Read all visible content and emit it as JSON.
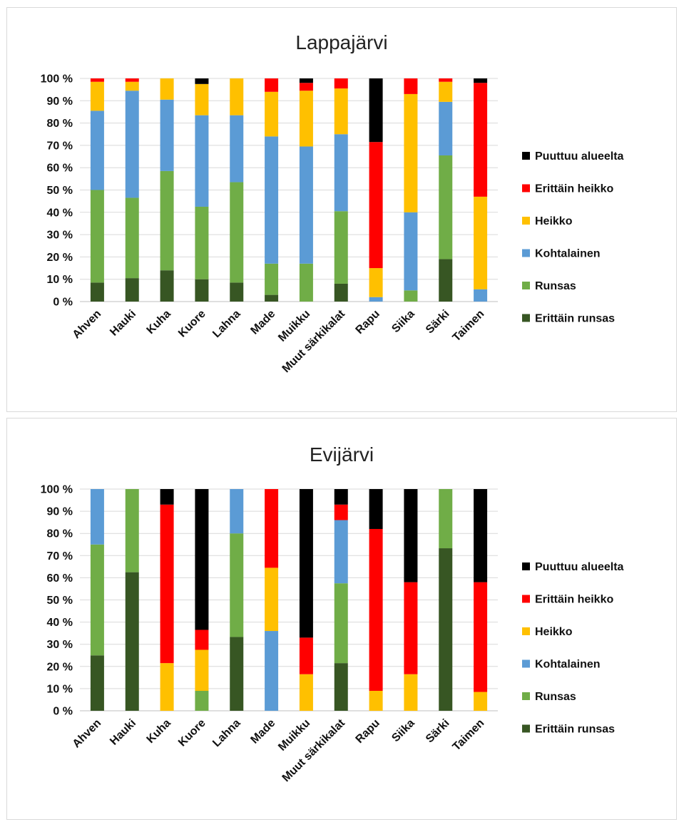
{
  "chart_data": [
    {
      "type": "bar",
      "stacked": true,
      "percent": true,
      "title": "Lappajärvi",
      "categories": [
        "Ahven",
        "Hauki",
        "Kuha",
        "Kuore",
        "Lahna",
        "Made",
        "Muikku",
        "Muut särkikalat",
        "Rapu",
        "Siika",
        "Särki",
        "Taimen"
      ],
      "y_ticks": [
        "0 %",
        "10 %",
        "20 %",
        "30 %",
        "40 %",
        "50 %",
        "60 %",
        "70 %",
        "80 %",
        "90 %",
        "100 %"
      ],
      "ylim": [
        0,
        100
      ],
      "grid": true,
      "legend_position": "right",
      "series": [
        {
          "name": "Erittäin runsas",
          "color": "#375623",
          "values": [
            8.5,
            10.5,
            14,
            10,
            8.5,
            3,
            0,
            8,
            0,
            0,
            19,
            0
          ]
        },
        {
          "name": "Runsas",
          "color": "#70ad47",
          "values": [
            41.5,
            36,
            44.5,
            32.5,
            45,
            14,
            17,
            32.5,
            0,
            5,
            46.5,
            0
          ]
        },
        {
          "name": "Kohtalainen",
          "color": "#5b9bd5",
          "values": [
            35.5,
            48,
            32,
            41,
            30,
            57,
            52.5,
            34.5,
            2,
            35,
            24,
            5.5
          ]
        },
        {
          "name": "Heikko",
          "color": "#ffc000",
          "values": [
            13,
            4,
            9.5,
            14,
            16.5,
            20,
            25,
            20.5,
            13,
            53,
            9,
            41.5
          ]
        },
        {
          "name": "Erittäin heikko",
          "color": "#ff0000",
          "values": [
            1.5,
            1.5,
            0,
            0,
            0,
            6,
            3.5,
            4.5,
            56.5,
            7,
            1.5,
            51
          ]
        },
        {
          "name": "Puuttuu alueelta",
          "color": "#000000",
          "values": [
            0,
            0,
            0,
            2.5,
            0,
            0,
            2,
            0,
            28.5,
            0,
            0,
            2
          ]
        }
      ]
    },
    {
      "type": "bar",
      "stacked": true,
      "percent": true,
      "title": "Evijärvi",
      "categories": [
        "Ahven",
        "Hauki",
        "Kuha",
        "Kuore",
        "Lahna",
        "Made",
        "Muikku",
        "Muut särkikalat",
        "Rapu",
        "Siika",
        "Särki",
        "Taimen"
      ],
      "y_ticks": [
        "0 %",
        "10 %",
        "20 %",
        "30 %",
        "40 %",
        "50 %",
        "60 %",
        "70 %",
        "80 %",
        "90 %",
        "100 %"
      ],
      "ylim": [
        0,
        100
      ],
      "grid": true,
      "legend_position": "right",
      "series": [
        {
          "name": "Erittäin runsas",
          "color": "#375623",
          "values": [
            25,
            62.5,
            0,
            0,
            33.3,
            0,
            0,
            21.5,
            0,
            0,
            73.3,
            0
          ]
        },
        {
          "name": "Runsas",
          "color": "#70ad47",
          "values": [
            50,
            37.5,
            0,
            9,
            46.7,
            0,
            0,
            36,
            0,
            0,
            26.7,
            0
          ]
        },
        {
          "name": "Kohtalainen",
          "color": "#5b9bd5",
          "values": [
            25,
            0,
            0,
            0,
            20,
            36,
            0,
            28.5,
            0,
            0,
            0,
            0
          ]
        },
        {
          "name": "Heikko",
          "color": "#ffc000",
          "values": [
            0,
            0,
            21.5,
            18.5,
            0,
            28.5,
            16.5,
            0,
            9,
            16.5,
            0,
            8.5
          ]
        },
        {
          "name": "Erittäin heikko",
          "color": "#ff0000",
          "values": [
            0,
            0,
            71.5,
            9,
            0,
            35.5,
            16.5,
            7,
            73,
            41.5,
            0,
            49.5
          ]
        },
        {
          "name": "Puuttuu alueelta",
          "color": "#000000",
          "values": [
            0,
            0,
            7,
            63.5,
            0,
            0,
            67,
            7,
            18,
            42,
            0,
            42
          ]
        }
      ]
    }
  ]
}
